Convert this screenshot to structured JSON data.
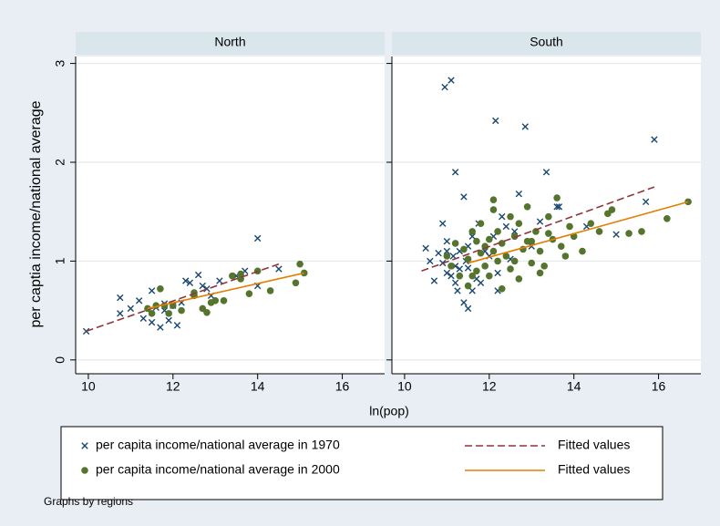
{
  "chart_data": {
    "type": "scatter",
    "xlabel": "ln(pop)",
    "ylabel": "per captia income/national average",
    "note": "Graphs by regions",
    "xlim": [
      9.7,
      17.0
    ],
    "ylim": [
      -0.14,
      3.07
    ],
    "xticks": [
      10,
      12,
      14,
      16
    ],
    "yticks": [
      0,
      1,
      2,
      3
    ],
    "grid": true,
    "series": [
      {
        "name": "per capita income/national average in 1970",
        "color": "#1a476f",
        "marker": "x"
      },
      {
        "name": "per capita income/national average in 2000",
        "color": "#55752f",
        "marker": "circle"
      },
      {
        "name": "Fitted values",
        "color": "#90353b",
        "marker": "dashed-line"
      },
      {
        "name": "Fitted values",
        "color": "#e37e00",
        "marker": "line"
      }
    ],
    "panels": [
      {
        "title": "North",
        "series": [
          {
            "x": [
              9.95,
              10.75,
              10.75,
              11.0,
              11.2,
              11.3,
              11.5,
              11.5,
              11.6,
              11.7,
              11.8,
              11.9,
              12.0,
              12.1,
              12.2,
              12.3,
              12.4,
              12.6,
              12.7,
              12.8,
              13.1,
              13.5,
              13.7,
              14.0,
              14.0,
              14.5,
              12.9,
              11.8
            ],
            "y": [
              0.29,
              0.63,
              0.47,
              0.52,
              0.6,
              0.42,
              0.7,
              0.38,
              0.53,
              0.33,
              0.5,
              0.4,
              0.55,
              0.35,
              0.58,
              0.8,
              0.78,
              0.86,
              0.75,
              0.72,
              0.8,
              0.85,
              0.9,
              1.23,
              0.75,
              0.92,
              0.65,
              0.57
            ]
          },
          {
            "x": [
              11.4,
              11.6,
              11.7,
              11.8,
              11.9,
              12.0,
              12.2,
              12.5,
              12.5,
              12.7,
              12.8,
              12.9,
              13.0,
              13.2,
              13.4,
              13.6,
              13.6,
              13.8,
              14.0,
              14.3,
              14.9,
              15.0,
              15.1,
              11.5
            ],
            "y": [
              0.52,
              0.55,
              0.72,
              0.55,
              0.47,
              0.55,
              0.5,
              0.65,
              0.68,
              0.52,
              0.48,
              0.58,
              0.6,
              0.6,
              0.85,
              0.87,
              0.82,
              0.67,
              0.9,
              0.7,
              0.78,
              0.97,
              0.88,
              0.47
            ]
          },
          {
            "x": [
              9.95,
              14.5
            ],
            "y": [
              0.29,
              0.97
            ]
          },
          {
            "x": [
              11.4,
              15.1
            ],
            "y": [
              0.52,
              0.88
            ]
          }
        ]
      },
      {
        "title": "South",
        "series": [
          {
            "x": [
              10.5,
              10.6,
              10.7,
              10.8,
              10.9,
              10.95,
              11.0,
              11.0,
              11.1,
              11.1,
              11.15,
              11.2,
              11.2,
              11.25,
              11.3,
              11.3,
              11.4,
              11.4,
              11.45,
              11.5,
              11.5,
              11.6,
              11.6,
              11.7,
              11.75,
              11.8,
              11.9,
              12.0,
              12.1,
              12.15,
              12.2,
              12.3,
              12.4,
              12.5,
              12.6,
              12.7,
              12.85,
              13.0,
              13.2,
              13.35,
              13.6,
              13.65,
              14.3,
              15.0,
              15.7,
              15.9,
              11.0,
              11.2,
              11.5,
              12.2,
              10.9
            ],
            "y": [
              1.13,
              1.0,
              0.8,
              1.08,
              1.38,
              2.76,
              0.88,
              1.2,
              0.85,
              2.83,
              1.05,
              1.9,
              0.95,
              0.7,
              1.1,
              0.92,
              1.65,
              0.58,
              1.0,
              0.52,
              1.15,
              0.7,
              1.25,
              0.82,
              1.38,
              0.78,
              1.1,
              1.05,
              1.25,
              2.42,
              0.7,
              1.45,
              1.35,
              1.02,
              1.3,
              1.68,
              2.36,
              1.15,
              1.4,
              1.9,
              1.55,
              1.55,
              1.35,
              1.27,
              1.6,
              2.23,
              1.1,
              0.78,
              0.93,
              0.88,
              0.98
            ]
          },
          {
            "x": [
              11.0,
              11.1,
              11.2,
              11.3,
              11.4,
              11.5,
              11.5,
              11.6,
              11.7,
              11.7,
              11.8,
              11.8,
              11.9,
              11.9,
              12.0,
              12.0,
              12.1,
              12.1,
              12.2,
              12.2,
              12.3,
              12.3,
              12.4,
              12.5,
              12.5,
              12.6,
              12.7,
              12.7,
              12.8,
              12.9,
              13.0,
              13.0,
              13.1,
              13.2,
              13.3,
              13.4,
              13.4,
              13.5,
              13.6,
              13.7,
              13.8,
              13.9,
              14.0,
              14.2,
              14.4,
              14.6,
              14.8,
              14.9,
              15.3,
              15.6,
              16.2,
              16.7,
              11.6,
              12.1,
              12.6,
              12.9,
              13.2
            ],
            "y": [
              1.05,
              0.95,
              1.18,
              0.85,
              1.12,
              1.02,
              0.75,
              1.3,
              0.9,
              1.2,
              1.08,
              1.38,
              0.95,
              1.15,
              1.22,
              0.85,
              1.52,
              1.1,
              1.0,
              1.3,
              1.18,
              0.72,
              1.05,
              1.45,
              0.92,
              1.25,
              0.82,
              1.38,
              1.12,
              1.55,
              1.2,
              0.98,
              1.3,
              1.1,
              0.95,
              1.28,
              1.45,
              1.22,
              1.64,
              1.15,
              1.05,
              1.35,
              1.25,
              1.1,
              1.38,
              1.3,
              1.48,
              1.52,
              1.28,
              1.3,
              1.43,
              1.6,
              0.85,
              1.62,
              1.0,
              1.2,
              0.88
            ]
          },
          {
            "x": [
              10.4,
              15.9
            ],
            "y": [
              0.9,
              1.75
            ]
          },
          {
            "x": [
              11.5,
              16.7
            ],
            "y": [
              0.98,
              1.6
            ]
          }
        ]
      }
    ]
  }
}
